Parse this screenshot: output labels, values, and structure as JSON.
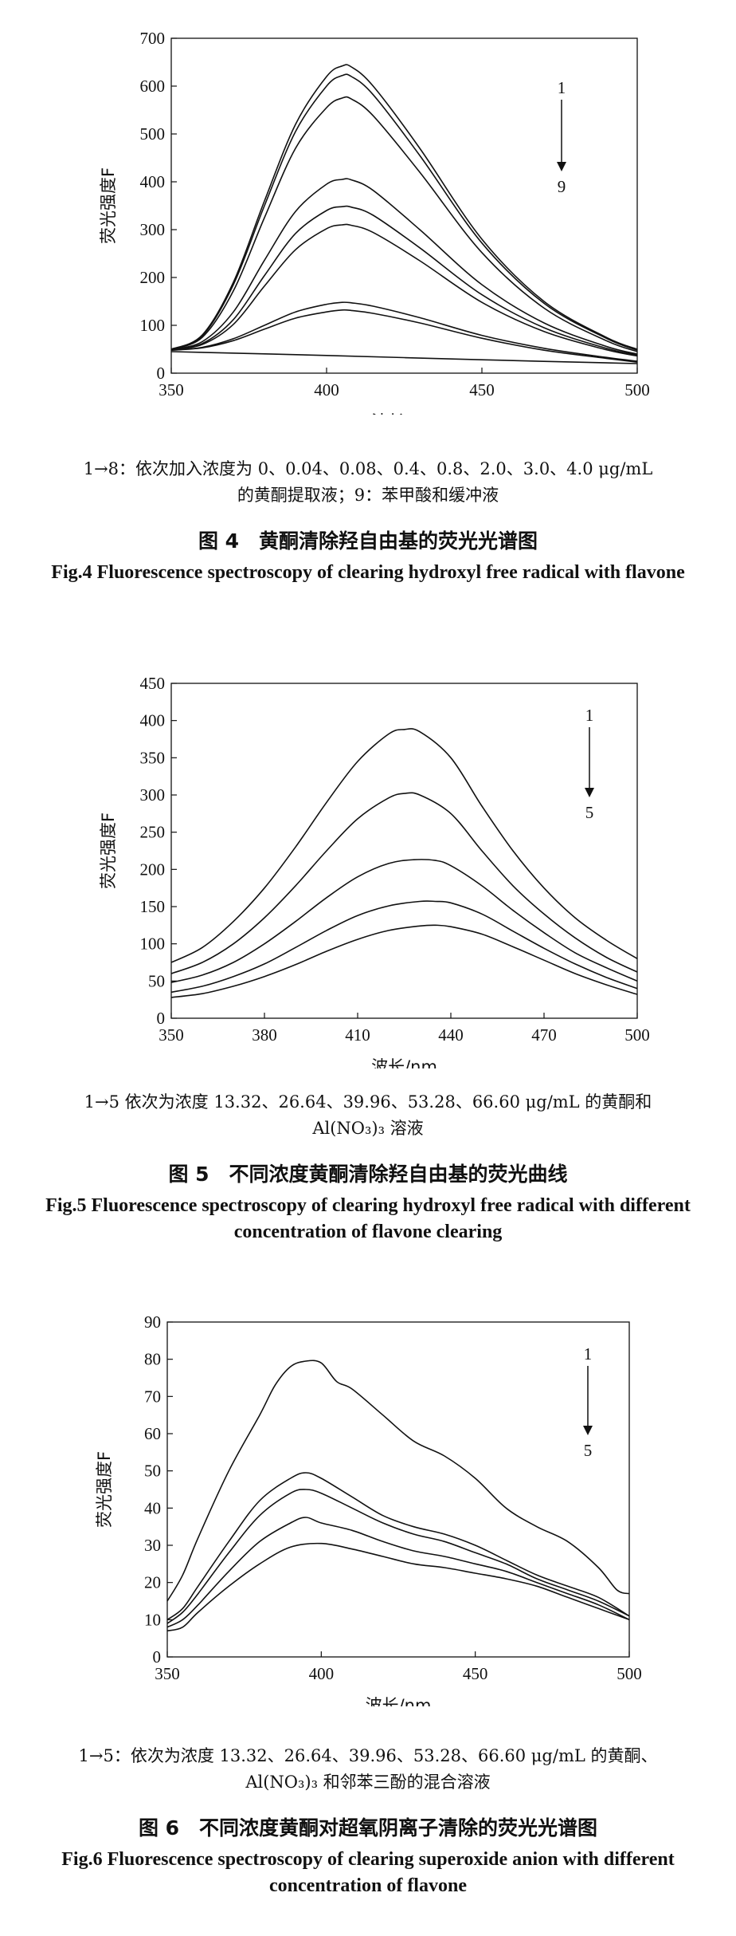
{
  "figures": [
    {
      "caption_cn": "图 4　黄酮清除羟自由基的荧光光谱图",
      "caption_en": "Fig.4 Fluorescence spectroscopy of clearing hydroxyl free radical with flavone",
      "note_lines": [
        "1→8：依次加入浓度为 0、0.04、0.08、0.4、0.8、2.0、3.0、4.0 μg/mL",
        "的黄酮提取液；9：苯甲酸和缓冲液"
      ],
      "legend_top": "1",
      "legend_bottom": "9",
      "chart_data": {
        "type": "line",
        "xlabel": "波长/nm",
        "ylabel": "荧光强度F",
        "xlim": [
          350,
          500
        ],
        "ylim": [
          0,
          700
        ],
        "xticks": [
          350,
          400,
          450,
          500
        ],
        "yticks": [
          0,
          100,
          200,
          300,
          400,
          500,
          600,
          700
        ],
        "series": [
          {
            "x": [
              350,
              360,
              370,
              380,
              390,
              400,
              405,
              408,
              415,
              430,
              450,
              470,
              490,
              500
            ],
            "y": [
              50,
              80,
              190,
              360,
              520,
              620,
              642,
              640,
              600,
              470,
              280,
              150,
              75,
              50
            ]
          },
          {
            "x": [
              350,
              360,
              370,
              380,
              390,
              400,
              405,
              408,
              415,
              430,
              450,
              470,
              490,
              500
            ],
            "y": [
              50,
              78,
              185,
              350,
              505,
              600,
              622,
              620,
              582,
              455,
              272,
              146,
              73,
              48
            ]
          },
          {
            "x": [
              350,
              360,
              370,
              380,
              390,
              400,
              405,
              408,
              415,
              430,
              450,
              470,
              490,
              500
            ],
            "y": [
              50,
              75,
              172,
              325,
              470,
              555,
              575,
              573,
              538,
              420,
              252,
              136,
              68,
              45
            ]
          },
          {
            "x": [
              350,
              360,
              370,
              380,
              390,
              400,
              405,
              408,
              415,
              430,
              450,
              470,
              490,
              500
            ],
            "y": [
              49,
              66,
              128,
              236,
              338,
              395,
              405,
              404,
              382,
              300,
              185,
              105,
              56,
              40
            ]
          },
          {
            "x": [
              350,
              360,
              370,
              380,
              390,
              400,
              405,
              408,
              415,
              430,
              450,
              470,
              490,
              500
            ],
            "y": [
              49,
              62,
              112,
              204,
              292,
              340,
              348,
              347,
              330,
              262,
              164,
              95,
              52,
              38
            ]
          },
          {
            "x": [
              350,
              360,
              370,
              380,
              390,
              400,
              405,
              408,
              415,
              430,
              450,
              470,
              490,
              500
            ],
            "y": [
              49,
              60,
              102,
              182,
              258,
              302,
              310,
              309,
              294,
              235,
              148,
              87,
              49,
              36
            ]
          },
          {
            "x": [
              350,
              360,
              370,
              380,
              390,
              400,
              405,
              408,
              415,
              430,
              450,
              470,
              490,
              500
            ],
            "y": [
              48,
              54,
              72,
              100,
              128,
              144,
              148,
              147,
              140,
              116,
              79,
              52,
              33,
              25
            ]
          },
          {
            "x": [
              350,
              360,
              370,
              380,
              390,
              400,
              405,
              408,
              415,
              430,
              450,
              470,
              490,
              500
            ],
            "y": [
              48,
              53,
              68,
              92,
              115,
              128,
              132,
              131,
              125,
              105,
              73,
              48,
              31,
              23
            ]
          },
          {
            "x": [
              350,
              400,
              450,
              500
            ],
            "y": [
              45,
              37,
              28,
              20
            ]
          }
        ]
      }
    },
    {
      "caption_cn": "图 5　不同浓度黄酮清除羟自由基的荧光曲线",
      "caption_en": "Fig.5 Fluorescence spectroscopy of clearing hydroxyl free radical with different concentration of flavone clearing",
      "note_lines": [
        "1→5 依次为浓度 13.32、26.64、39.96、53.28、66.60 μg/mL 的黄酮和",
        "Al(NO₃)₃ 溶液"
      ],
      "legend_top": "1",
      "legend_bottom": "5",
      "chart_data": {
        "type": "line",
        "xlabel": "波长/nm",
        "ylabel": "荧光强度F",
        "xlim": [
          350,
          500
        ],
        "ylim": [
          0,
          450
        ],
        "xticks": [
          350,
          380,
          410,
          440,
          470,
          500
        ],
        "yticks": [
          0,
          50,
          100,
          150,
          200,
          250,
          300,
          350,
          400,
          450
        ],
        "series": [
          {
            "x": [
              350,
              360,
              370,
              380,
              390,
              400,
              410,
              420,
              425,
              430,
              440,
              450,
              460,
              470,
              480,
              490,
              500
            ],
            "y": [
              75,
              95,
              130,
              175,
              230,
              290,
              345,
              382,
              388,
              385,
              350,
              285,
              225,
              175,
              135,
              105,
              80
            ]
          },
          {
            "x": [
              350,
              360,
              370,
              380,
              390,
              400,
              410,
              420,
              425,
              430,
              440,
              450,
              460,
              470,
              480,
              490,
              500
            ],
            "y": [
              60,
              75,
              100,
              135,
              178,
              225,
              268,
              296,
              302,
              300,
              275,
              225,
              178,
              140,
              108,
              82,
              62
            ]
          },
          {
            "x": [
              350,
              360,
              370,
              380,
              390,
              400,
              410,
              420,
              428,
              435,
              440,
              450,
              460,
              470,
              480,
              490,
              500
            ],
            "y": [
              48,
              58,
              75,
              100,
              130,
              162,
              190,
              208,
              213,
              212,
              205,
              178,
              145,
              115,
              88,
              68,
              50
            ]
          },
          {
            "x": [
              350,
              360,
              370,
              380,
              390,
              400,
              410,
              420,
              430,
              435,
              440,
              450,
              460,
              470,
              480,
              490,
              500
            ],
            "y": [
              35,
              43,
              56,
              73,
              95,
              118,
              138,
              151,
              157,
              157,
              155,
              140,
              117,
              94,
              73,
              55,
              40
            ]
          },
          {
            "x": [
              350,
              360,
              370,
              380,
              390,
              400,
              410,
              420,
              430,
              435,
              440,
              450,
              460,
              470,
              480,
              490,
              500
            ],
            "y": [
              28,
              33,
              43,
              56,
              72,
              90,
              106,
              118,
              124,
              125,
              123,
              113,
              96,
              78,
              60,
              45,
              32
            ]
          }
        ]
      }
    },
    {
      "caption_cn": "图 6　不同浓度黄酮对超氧阴离子清除的荧光光谱图",
      "caption_en": "Fig.6 Fluorescence spectroscopy of clearing superoxide anion with different concentration of flavone",
      "note_lines": [
        "1→5：依次为浓度 13.32、26.64、39.96、53.28、66.60 μg/mL 的黄酮、",
        "Al(NO₃)₃ 和邻苯三酚的混合溶液"
      ],
      "legend_top": "1",
      "legend_bottom": "5",
      "chart_data": {
        "type": "line",
        "xlabel": "波长/nm",
        "ylabel": "荧光强度F",
        "xlim": [
          350,
          500
        ],
        "ylim": [
          0,
          90
        ],
        "xticks": [
          350,
          400,
          450,
          500
        ],
        "yticks": [
          0,
          10,
          20,
          30,
          40,
          50,
          60,
          70,
          80,
          90
        ],
        "series": [
          {
            "x": [
              350,
              355,
              360,
              370,
              380,
              385,
              390,
              395,
              400,
              405,
              410,
              420,
              430,
              440,
              450,
              460,
              470,
              480,
              490,
              496,
              500
            ],
            "y": [
              15,
              22,
              32,
              50,
              65,
              73,
              78,
              79.5,
              79,
              74,
              72,
              65,
              58,
              54,
              48,
              40,
              35,
              31,
              24,
              18,
              17
            ]
          },
          {
            "x": [
              350,
              355,
              360,
              370,
              380,
              390,
              395,
              400,
              410,
              420,
              430,
              440,
              450,
              460,
              470,
              480,
              490,
              500
            ],
            "y": [
              10,
              13,
              19,
              31,
              42,
              48,
              49.5,
              48,
              43,
              38,
              35,
              33,
              30,
              26,
              22,
              19,
              16,
              11
            ]
          },
          {
            "x": [
              350,
              355,
              360,
              370,
              380,
              390,
              395,
              400,
              410,
              420,
              430,
              440,
              450,
              460,
              470,
              480,
              490,
              500
            ],
            "y": [
              9,
              12,
              17,
              28,
              38,
              44,
              45,
              44,
              40,
              36,
              33,
              31,
              28,
              25,
              21,
              18,
              15,
              11
            ]
          },
          {
            "x": [
              350,
              355,
              360,
              370,
              380,
              390,
              395,
              400,
              410,
              420,
              430,
              440,
              450,
              460,
              470,
              480,
              490,
              500
            ],
            "y": [
              8,
              10,
              14,
              23,
              31,
              36,
              37.5,
              36,
              34,
              31,
              28.5,
              27,
              25,
              23,
              20,
              17,
              14,
              10
            ]
          },
          {
            "x": [
              350,
              355,
              360,
              370,
              380,
              390,
              400,
              410,
              420,
              430,
              440,
              450,
              460,
              470,
              480,
              490,
              500
            ],
            "y": [
              7,
              8,
              12,
              19,
              25,
              29.5,
              30.5,
              29,
              27,
              25,
              24,
              22.5,
              21,
              19,
              16,
              13,
              10
            ]
          }
        ]
      }
    }
  ]
}
